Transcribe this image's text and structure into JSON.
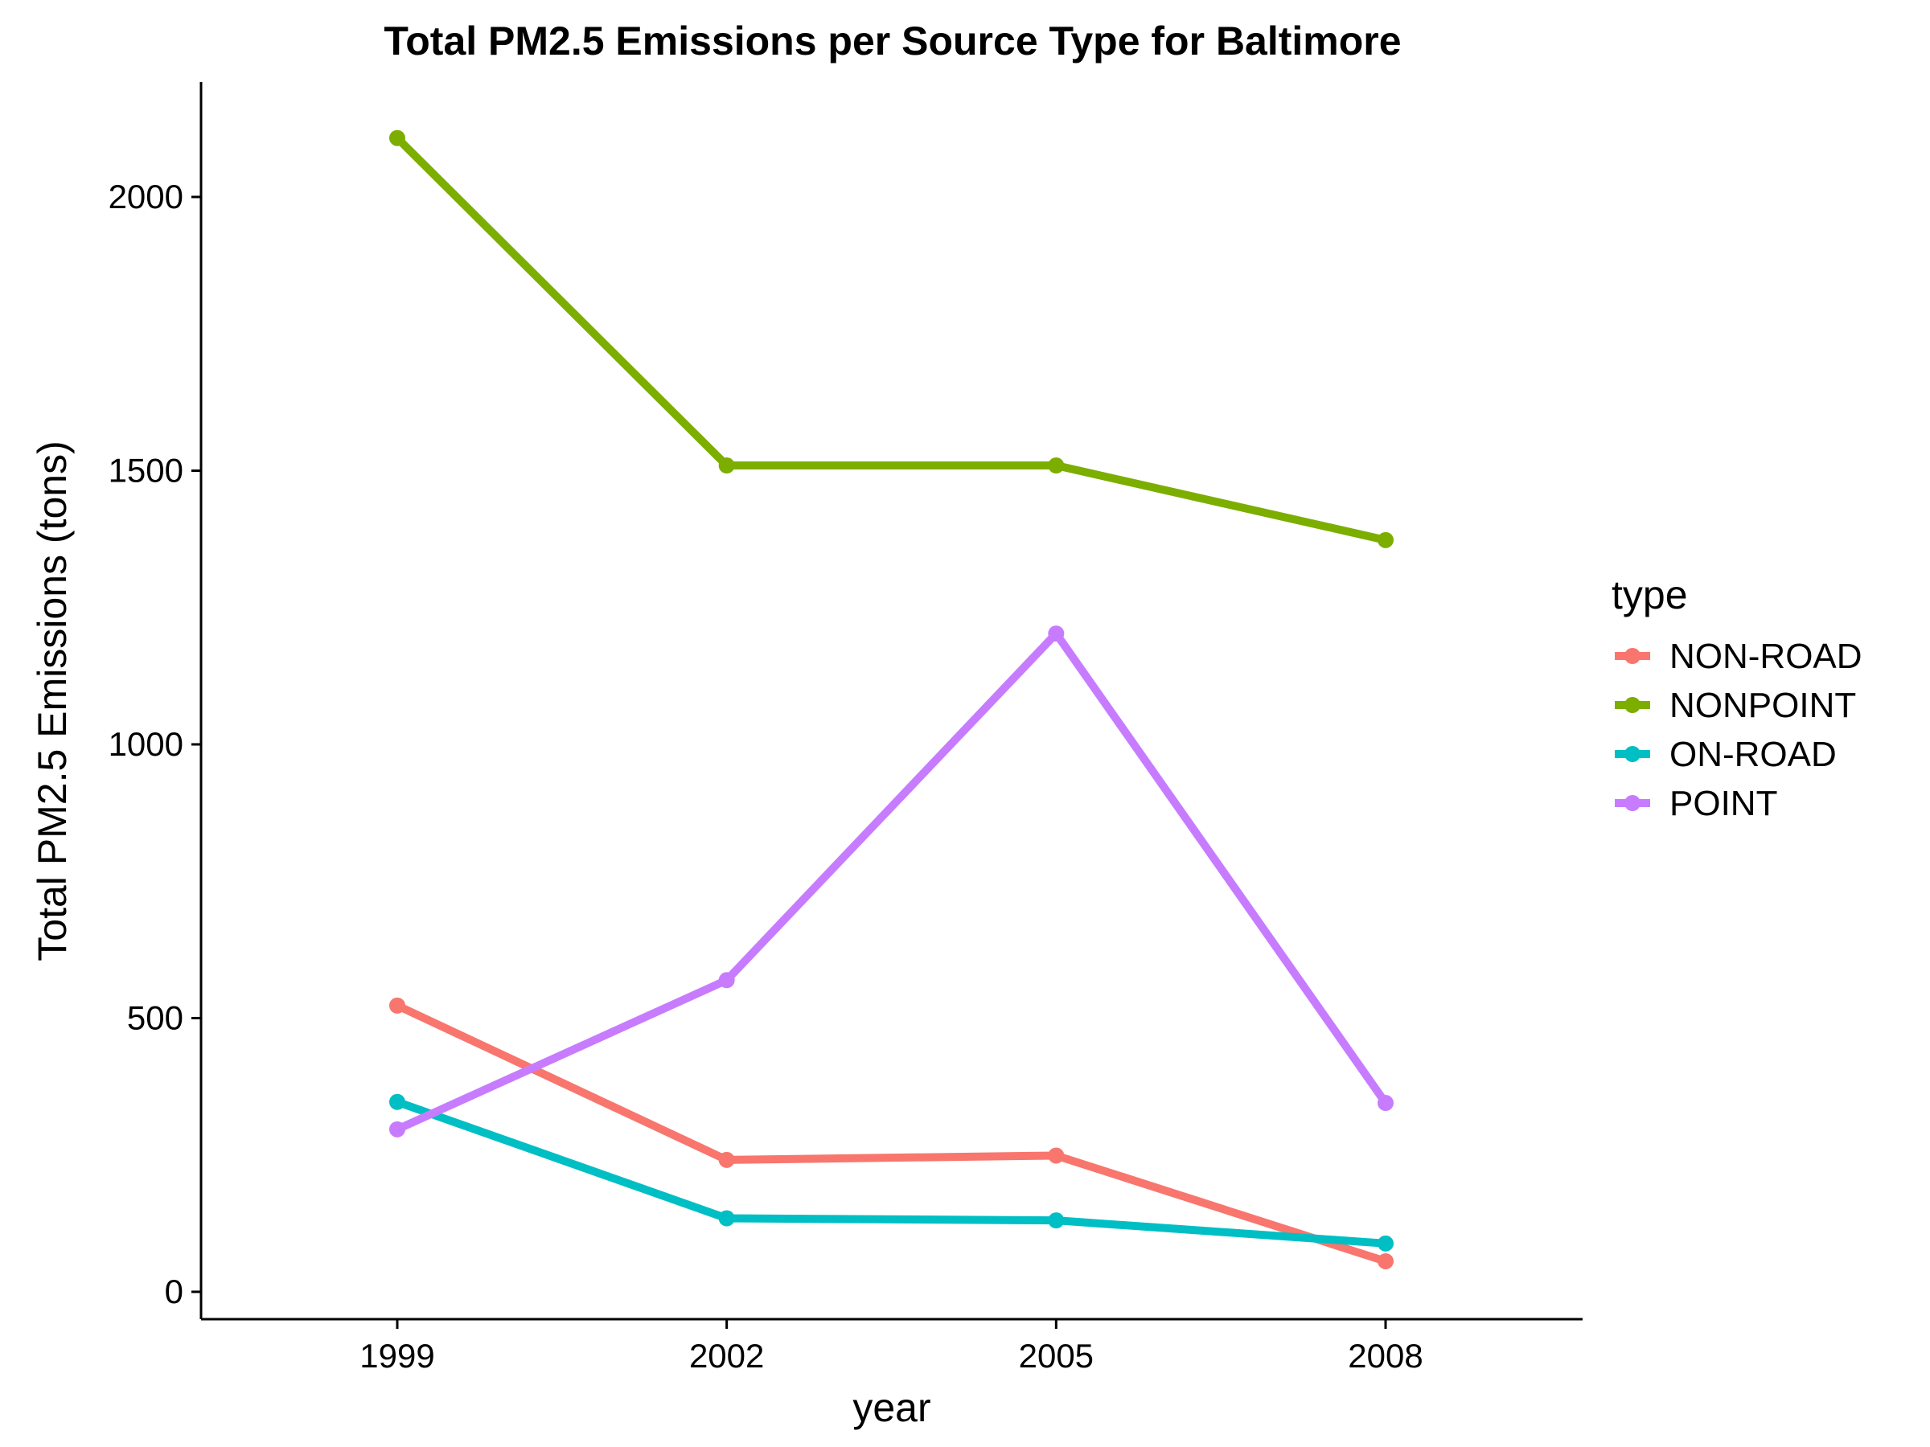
{
  "chart_data": {
    "type": "line",
    "title": "Total PM2.5 Emissions per Source Type for Baltimore",
    "xlabel": "year",
    "ylabel": "Total PM2.5 Emissions (tons)",
    "categories": [
      "1999",
      "2002",
      "2005",
      "2008"
    ],
    "y_ticks": [
      "0",
      "500",
      "1000",
      "1500",
      "2000"
    ],
    "ylim": [
      -50,
      2210
    ],
    "grid": false,
    "legend_title": "type",
    "legend_position": "right",
    "series": [
      {
        "name": "NON-ROAD",
        "color": "#F8766D",
        "values": [
          522.9,
          241.0,
          248.9,
          55.8
        ]
      },
      {
        "name": "NONPOINT",
        "color": "#7CAE00",
        "values": [
          2107.6,
          1509.5,
          1509.5,
          1373.2
        ]
      },
      {
        "name": "ON-ROAD",
        "color": "#00BFC4",
        "values": [
          346.8,
          134.3,
          130.4,
          88.3
        ]
      },
      {
        "name": "POINT",
        "color": "#C77CFF",
        "values": [
          296.8,
          569.3,
          1202.5,
          344.98
        ]
      }
    ]
  }
}
